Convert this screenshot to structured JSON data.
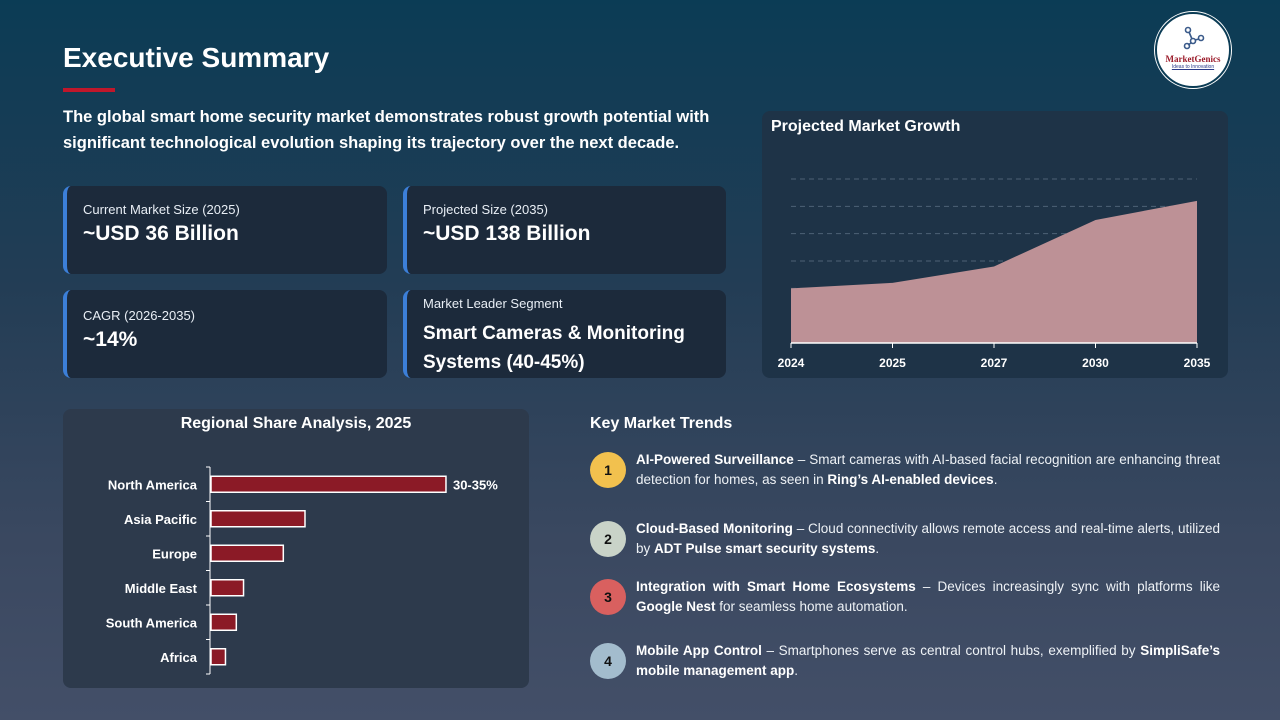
{
  "title": "Executive Summary",
  "logo": {
    "name": "MarketGenics",
    "tagline": "Ideas to Innovation"
  },
  "intro": "The global smart home security market demonstrates robust growth potential with significant technological evolution shaping its trajectory over the next decade.",
  "cards": [
    {
      "label": "Current Market Size (2025)",
      "value": "~USD 36 Billion"
    },
    {
      "label": "Projected Size (2035)",
      "value": "~USD 138 Billion"
    },
    {
      "label": "CAGR (2026-2035)",
      "value": "~14%"
    },
    {
      "label": "Market Leader Segment",
      "value": "Smart Cameras & Monitoring Systems (40-45%)"
    }
  ],
  "colors": {
    "accent": "#c0172b",
    "card_border": "#3c7fd8",
    "area_fill": "#bd9196",
    "bar_fill": "#8b1a26"
  },
  "chart_data": [
    {
      "type": "area",
      "title": "Projected Market Growth",
      "categories": [
        "2024",
        "2025",
        "2027",
        "2030",
        "2035"
      ],
      "values": [
        2.0,
        2.2,
        2.8,
        4.5,
        5.2
      ],
      "ylim": [
        0,
        6
      ],
      "grid": true,
      "y_tick_labels": false,
      "legend": "none"
    },
    {
      "type": "bar",
      "orientation": "horizontal",
      "title": "Regional Share Analysis, 2025",
      "categories": [
        "North America",
        "Asia Pacific",
        "Europe",
        "Middle East",
        "South America",
        "Africa"
      ],
      "values": [
        32.5,
        13,
        10,
        4.5,
        3.5,
        2
      ],
      "data_labels": [
        "30-35%",
        "",
        "",
        "",
        "",
        ""
      ],
      "unit": "%",
      "legend": "none"
    }
  ],
  "trends": {
    "title": "Key Market Trends",
    "items": [
      {
        "num": "1",
        "color": "#f2c14e",
        "title": "AI-Powered Surveillance",
        "desc": " – Smart cameras with AI-based facial recognition are enhancing threat detection for homes, as seen in ",
        "highlight": "Ring’s AI-enabled devices",
        "tail": "."
      },
      {
        "num": "2",
        "color": "#c9d3c8",
        "title": "Cloud-Based Monitoring",
        "desc": " – Cloud connectivity allows remote access and real-time alerts, utilized by ",
        "highlight": "ADT Pulse smart security systems",
        "tail": "."
      },
      {
        "num": "3",
        "color": "#d9605f",
        "title": "Integration with Smart Home Ecosystems",
        "desc": " – Devices increasingly sync with platforms like ",
        "highlight": "Google Nest",
        "tail": " for seamless home automation."
      },
      {
        "num": "4",
        "color": "#a3bccd",
        "title": "Mobile App Control",
        "desc": " – Smartphones serve as central control hubs, exemplified by ",
        "highlight": "SimpliSafe’s mobile management app",
        "tail": "."
      }
    ]
  }
}
